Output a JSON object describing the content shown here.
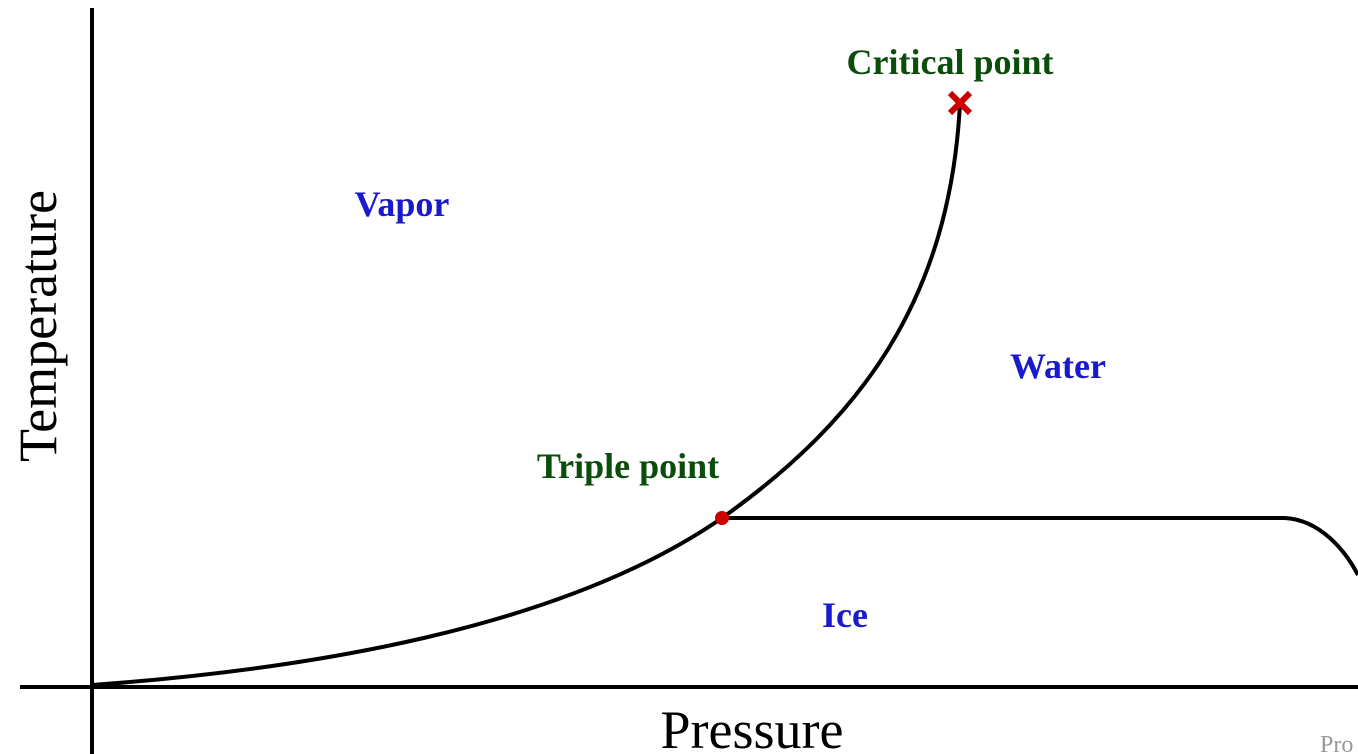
{
  "axes": {
    "x_label": "Pressure",
    "y_label": "Temperature"
  },
  "points": {
    "critical": "Critical point",
    "triple": "Triple point"
  },
  "regions": {
    "vapor": "Vapor",
    "water": "Water",
    "ice": "Ice"
  },
  "footer": "Pro"
}
